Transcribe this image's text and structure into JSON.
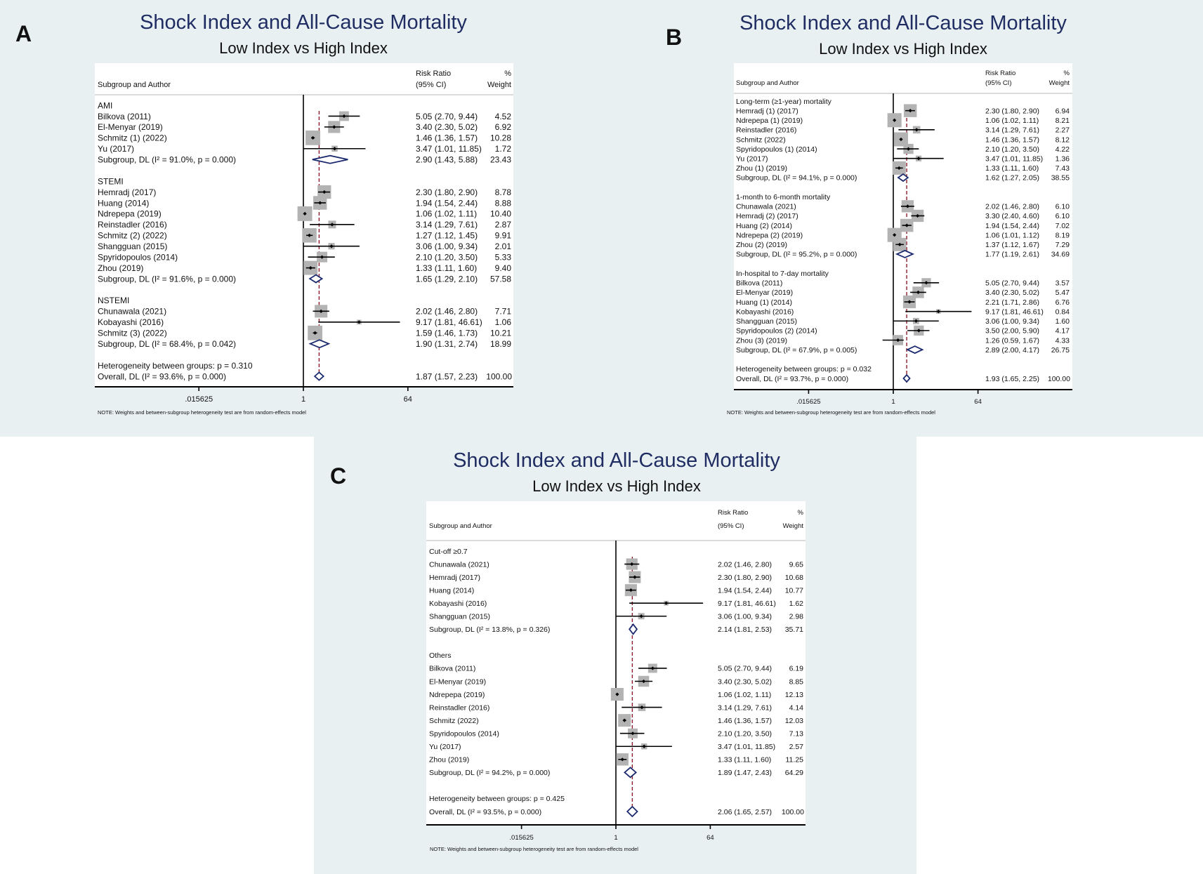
{
  "colors": {
    "background": "#e9f0f2",
    "title": "#1f2d63",
    "square": "#b3b3b3",
    "diamond": "#1b2a6e",
    "reference_line": "#8b1a2b"
  },
  "chart_data": [
    {
      "type": "scatter",
      "panel": "A",
      "title": "Shock Index and All-Cause Mortality",
      "subtitle": "Low Index vs High Index",
      "header": {
        "label": "Subgroup and Author",
        "rr1": "Risk Ratio",
        "rr2": "(95% CI)",
        "wt1": "%",
        "wt2": "Weight"
      },
      "xscale": "log",
      "xticks": [
        0.015625,
        1,
        64
      ],
      "xtick_labels": [
        ".015625",
        "1",
        "64"
      ],
      "groups": [
        {
          "name": "AMI",
          "studies": [
            {
              "author": "Bilkova (2011)",
              "rr": 5.05,
              "lo": 2.7,
              "hi": 9.44,
              "weight": 4.52
            },
            {
              "author": "El-Menyar (2019)",
              "rr": 3.4,
              "lo": 2.3,
              "hi": 5.02,
              "weight": 6.92
            },
            {
              "author": "Schmitz (1) (2022)",
              "rr": 1.46,
              "lo": 1.36,
              "hi": 1.57,
              "weight": 10.28
            },
            {
              "author": "Yu (2017)",
              "rr": 3.47,
              "lo": 1.01,
              "hi": 11.85,
              "weight": 1.72
            }
          ],
          "subgroup": {
            "label": "Subgroup, DL (I² = 91.0%, p = 0.000)",
            "rr": 2.9,
            "lo": 1.43,
            "hi": 5.88,
            "weight": 23.43
          }
        },
        {
          "name": "STEMI",
          "studies": [
            {
              "author": "Hemradj (2017)",
              "rr": 2.3,
              "lo": 1.8,
              "hi": 2.9,
              "weight": 8.78
            },
            {
              "author": "Huang (2014)",
              "rr": 1.94,
              "lo": 1.54,
              "hi": 2.44,
              "weight": 8.88
            },
            {
              "author": "Ndrepepa (2019)",
              "rr": 1.06,
              "lo": 1.02,
              "hi": 1.11,
              "weight": 10.4
            },
            {
              "author": "Reinstadler (2016)",
              "rr": 3.14,
              "lo": 1.29,
              "hi": 7.61,
              "weight": 2.87
            },
            {
              "author": "Schmitz (2) (2022)",
              "rr": 1.27,
              "lo": 1.12,
              "hi": 1.45,
              "weight": 9.91
            },
            {
              "author": "Shangguan (2015)",
              "rr": 3.06,
              "lo": 1.0,
              "hi": 9.34,
              "weight": 2.01
            },
            {
              "author": "Spyridopoulos (2014)",
              "rr": 2.1,
              "lo": 1.2,
              "hi": 3.5,
              "weight": 5.33
            },
            {
              "author": "Zhou (2019)",
              "rr": 1.33,
              "lo": 1.11,
              "hi": 1.6,
              "weight": 9.4
            }
          ],
          "subgroup": {
            "label": "Subgroup, DL (I² = 91.6%, p = 0.000)",
            "rr": 1.65,
            "lo": 1.29,
            "hi": 2.1,
            "weight": 57.58
          }
        },
        {
          "name": "NSTEMI",
          "studies": [
            {
              "author": "Chunawala (2021)",
              "rr": 2.02,
              "lo": 1.46,
              "hi": 2.8,
              "weight": 7.71
            },
            {
              "author": "Kobayashi (2016)",
              "rr": 9.17,
              "lo": 1.81,
              "hi": 46.61,
              "weight": 1.06
            },
            {
              "author": "Schmitz (3) (2022)",
              "rr": 1.59,
              "lo": 1.46,
              "hi": 1.73,
              "weight": 10.21
            }
          ],
          "subgroup": {
            "label": "Subgroup, DL (I² = 68.4%, p = 0.042)",
            "rr": 1.9,
            "lo": 1.31,
            "hi": 2.74,
            "weight": 18.99
          }
        }
      ],
      "heterogeneity": "Heterogeneity between groups: p = 0.310",
      "overall": {
        "label": "Overall, DL (I² = 93.6%, p = 0.000)",
        "rr": 1.87,
        "lo": 1.57,
        "hi": 2.23,
        "weight": 100.0
      },
      "note": "NOTE: Weights and between-subgroup heterogeneity test are from random-effects model"
    },
    {
      "type": "scatter",
      "panel": "B",
      "title": "Shock Index and All-Cause Mortality",
      "subtitle": "Low Index vs High Index",
      "header": {
        "label": "Subgroup and Author",
        "rr1": "Risk Ratio",
        "rr2": "(95% CI)",
        "wt1": "%",
        "wt2": "Weight"
      },
      "xscale": "log",
      "xticks": [
        0.015625,
        1,
        64
      ],
      "xtick_labels": [
        ".015625",
        "1",
        "64"
      ],
      "groups": [
        {
          "name": "Long-term (≥1-year) mortality",
          "studies": [
            {
              "author": "Hemradj (1) (2017)",
              "rr": 2.3,
              "lo": 1.8,
              "hi": 2.9,
              "weight": 6.94
            },
            {
              "author": "Ndrepepa (1) (2019)",
              "rr": 1.06,
              "lo": 1.02,
              "hi": 1.11,
              "weight": 8.21
            },
            {
              "author": "Reinstadler (2016)",
              "rr": 3.14,
              "lo": 1.29,
              "hi": 7.61,
              "weight": 2.27
            },
            {
              "author": "Schmitz (2022)",
              "rr": 1.46,
              "lo": 1.36,
              "hi": 1.57,
              "weight": 8.12
            },
            {
              "author": "Spyridopoulos (1) (2014)",
              "rr": 2.1,
              "lo": 1.2,
              "hi": 3.5,
              "weight": 4.22
            },
            {
              "author": "Yu (2017)",
              "rr": 3.47,
              "lo": 1.01,
              "hi": 11.85,
              "weight": 1.36
            },
            {
              "author": "Zhou (1) (2019)",
              "rr": 1.33,
              "lo": 1.11,
              "hi": 1.6,
              "weight": 7.43
            }
          ],
          "subgroup": {
            "label": "Subgroup, DL (I² = 94.1%, p = 0.000)",
            "rr": 1.62,
            "lo": 1.27,
            "hi": 2.05,
            "weight": 38.55
          }
        },
        {
          "name": "1-month to 6-month mortality",
          "studies": [
            {
              "author": "Chunawala (2021)",
              "rr": 2.02,
              "lo": 1.46,
              "hi": 2.8,
              "weight": 6.1
            },
            {
              "author": "Hemradj (2) (2017)",
              "rr": 3.3,
              "lo": 2.4,
              "hi": 4.6,
              "weight": 6.1
            },
            {
              "author": "Huang (2) (2014)",
              "rr": 1.94,
              "lo": 1.54,
              "hi": 2.44,
              "weight": 7.02
            },
            {
              "author": "Ndrepepa (2) (2019)",
              "rr": 1.06,
              "lo": 1.01,
              "hi": 1.12,
              "weight": 8.19
            },
            {
              "author": "Zhou (2) (2019)",
              "rr": 1.37,
              "lo": 1.12,
              "hi": 1.67,
              "weight": 7.29
            }
          ],
          "subgroup": {
            "label": "Subgroup, DL (I² = 95.2%, p = 0.000)",
            "rr": 1.77,
            "lo": 1.19,
            "hi": 2.61,
            "weight": 34.69
          }
        },
        {
          "name": "In-hospital to 7-day mortality",
          "studies": [
            {
              "author": "Bilkova (2011)",
              "rr": 5.05,
              "lo": 2.7,
              "hi": 9.44,
              "weight": 3.57
            },
            {
              "author": "El-Menyar (2019)",
              "rr": 3.4,
              "lo": 2.3,
              "hi": 5.02,
              "weight": 5.47
            },
            {
              "author": "Huang (1) (2014)",
              "rr": 2.21,
              "lo": 1.71,
              "hi": 2.86,
              "weight": 6.76
            },
            {
              "author": "Kobayashi (2016)",
              "rr": 9.17,
              "lo": 1.81,
              "hi": 46.61,
              "weight": 0.84
            },
            {
              "author": "Shangguan (2015)",
              "rr": 3.06,
              "lo": 1.0,
              "hi": 9.34,
              "weight": 1.6
            },
            {
              "author": "Spyridopoulos (2) (2014)",
              "rr": 3.5,
              "lo": 2.0,
              "hi": 5.9,
              "weight": 4.17
            },
            {
              "author": "Zhou (3) (2019)",
              "rr": 1.26,
              "lo": 0.59,
              "hi": 1.67,
              "weight": 4.33
            }
          ],
          "subgroup": {
            "label": "Subgroup, DL (I² = 67.9%, p = 0.005)",
            "rr": 2.89,
            "lo": 2.0,
            "hi": 4.17,
            "weight": 26.75
          }
        }
      ],
      "heterogeneity": "Heterogeneity between groups: p = 0.032",
      "overall": {
        "label": "Overall, DL (I² = 93.7%, p = 0.000)",
        "rr": 1.93,
        "lo": 1.65,
        "hi": 2.25,
        "weight": 100.0
      },
      "note": "NOTE: Weights and between-subgroup heterogeneity test are from random-effects model"
    },
    {
      "type": "scatter",
      "panel": "C",
      "title": "Shock Index and All-Cause Mortality",
      "subtitle": "Low Index vs High Index",
      "header": {
        "label": "Subgroup and Author",
        "rr1": "Risk Ratio",
        "rr2": "(95% CI)",
        "wt1": "%",
        "wt2": "Weight"
      },
      "xscale": "log",
      "xticks": [
        0.015625,
        1,
        64
      ],
      "xtick_labels": [
        ".015625",
        "1",
        "64"
      ],
      "groups": [
        {
          "name": "Cut-off ≥0.7",
          "studies": [
            {
              "author": "Chunawala  (2021)",
              "rr": 2.02,
              "lo": 1.46,
              "hi": 2.8,
              "weight": 9.65
            },
            {
              "author": "Hemradj (2017)",
              "rr": 2.3,
              "lo": 1.8,
              "hi": 2.9,
              "weight": 10.68
            },
            {
              "author": "Huang (2014)",
              "rr": 1.94,
              "lo": 1.54,
              "hi": 2.44,
              "weight": 10.77
            },
            {
              "author": "Kobayashi (2016)",
              "rr": 9.17,
              "lo": 1.81,
              "hi": 46.61,
              "weight": 1.62
            },
            {
              "author": "Shangguan (2015)",
              "rr": 3.06,
              "lo": 1.0,
              "hi": 9.34,
              "weight": 2.98
            }
          ],
          "subgroup": {
            "label": "Subgroup, DL (I² = 13.8%, p = 0.326)",
            "rr": 2.14,
            "lo": 1.81,
            "hi": 2.53,
            "weight": 35.71
          }
        },
        {
          "name": "Others",
          "studies": [
            {
              "author": "Bilkova (2011)",
              "rr": 5.05,
              "lo": 2.7,
              "hi": 9.44,
              "weight": 6.19
            },
            {
              "author": "El-Menyar (2019)",
              "rr": 3.4,
              "lo": 2.3,
              "hi": 5.02,
              "weight": 8.85
            },
            {
              "author": "Ndrepepa (2019)",
              "rr": 1.06,
              "lo": 1.02,
              "hi": 1.11,
              "weight": 12.13
            },
            {
              "author": "Reinstadler (2016)",
              "rr": 3.14,
              "lo": 1.29,
              "hi": 7.61,
              "weight": 4.14
            },
            {
              "author": "Schmitz (2022)",
              "rr": 1.46,
              "lo": 1.36,
              "hi": 1.57,
              "weight": 12.03
            },
            {
              "author": "Spyridopoulos (2014)",
              "rr": 2.1,
              "lo": 1.2,
              "hi": 3.5,
              "weight": 7.13
            },
            {
              "author": "Yu (2017)",
              "rr": 3.47,
              "lo": 1.01,
              "hi": 11.85,
              "weight": 2.57
            },
            {
              "author": "Zhou (2019)",
              "rr": 1.33,
              "lo": 1.11,
              "hi": 1.6,
              "weight": 11.25
            }
          ],
          "subgroup": {
            "label": "Subgroup, DL (I² = 94.2%, p = 0.000)",
            "rr": 1.89,
            "lo": 1.47,
            "hi": 2.43,
            "weight": 64.29
          }
        }
      ],
      "heterogeneity": "Heterogeneity between groups: p = 0.425",
      "overall": {
        "label": "Overall, DL (I² = 93.5%, p = 0.000)",
        "rr": 2.06,
        "lo": 1.65,
        "hi": 2.57,
        "weight": 100.0
      },
      "note": "NOTE: Weights and between-subgroup heterogeneity test are from random-effects model"
    }
  ]
}
